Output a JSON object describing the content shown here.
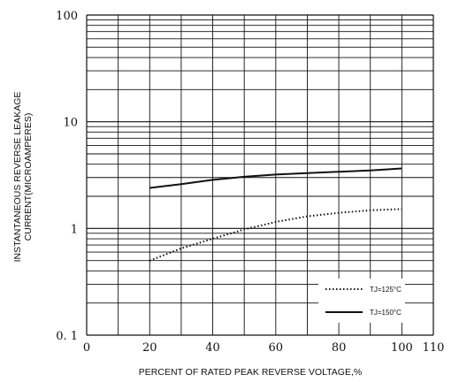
{
  "chart_data": {
    "type": "line",
    "xlabel": "PERCENT OF RATED PEAK REVERSE VOLTAGE,%",
    "ylabel_line1": "INSTANTANEOUS REVERSE LEAKAGE",
    "ylabel_line2": "CURRENT(MICROAMPERES)",
    "x_scale": "linear",
    "y_scale": "log",
    "xlim": [
      0,
      110
    ],
    "ylim": [
      0.1,
      100
    ],
    "x_ticks": [
      0,
      20,
      40,
      60,
      80,
      100,
      110
    ],
    "x_tick_labels": [
      "0",
      "20",
      "40",
      "60",
      "80",
      "100",
      "110"
    ],
    "y_ticks": [
      0.1,
      1,
      10,
      100
    ],
    "y_tick_labels": [
      "0. 1",
      "1",
      "10",
      "100"
    ],
    "grid": "log minor horizontal lines, vertical lines every 10",
    "legend_position": "bottom-right",
    "series": [
      {
        "name": "TJ=125°C",
        "style": "dotted",
        "color": "#111111",
        "x": [
          20,
          30,
          40,
          50,
          60,
          70,
          80,
          90,
          100
        ],
        "y": [
          0.5,
          0.65,
          0.8,
          0.98,
          1.15,
          1.3,
          1.4,
          1.48,
          1.52
        ]
      },
      {
        "name": "TJ=150°C",
        "style": "solid",
        "color": "#111111",
        "x": [
          20,
          30,
          40,
          50,
          60,
          70,
          80,
          90,
          100
        ],
        "y": [
          2.4,
          2.6,
          2.85,
          3.05,
          3.2,
          3.3,
          3.4,
          3.5,
          3.65
        ]
      }
    ]
  }
}
